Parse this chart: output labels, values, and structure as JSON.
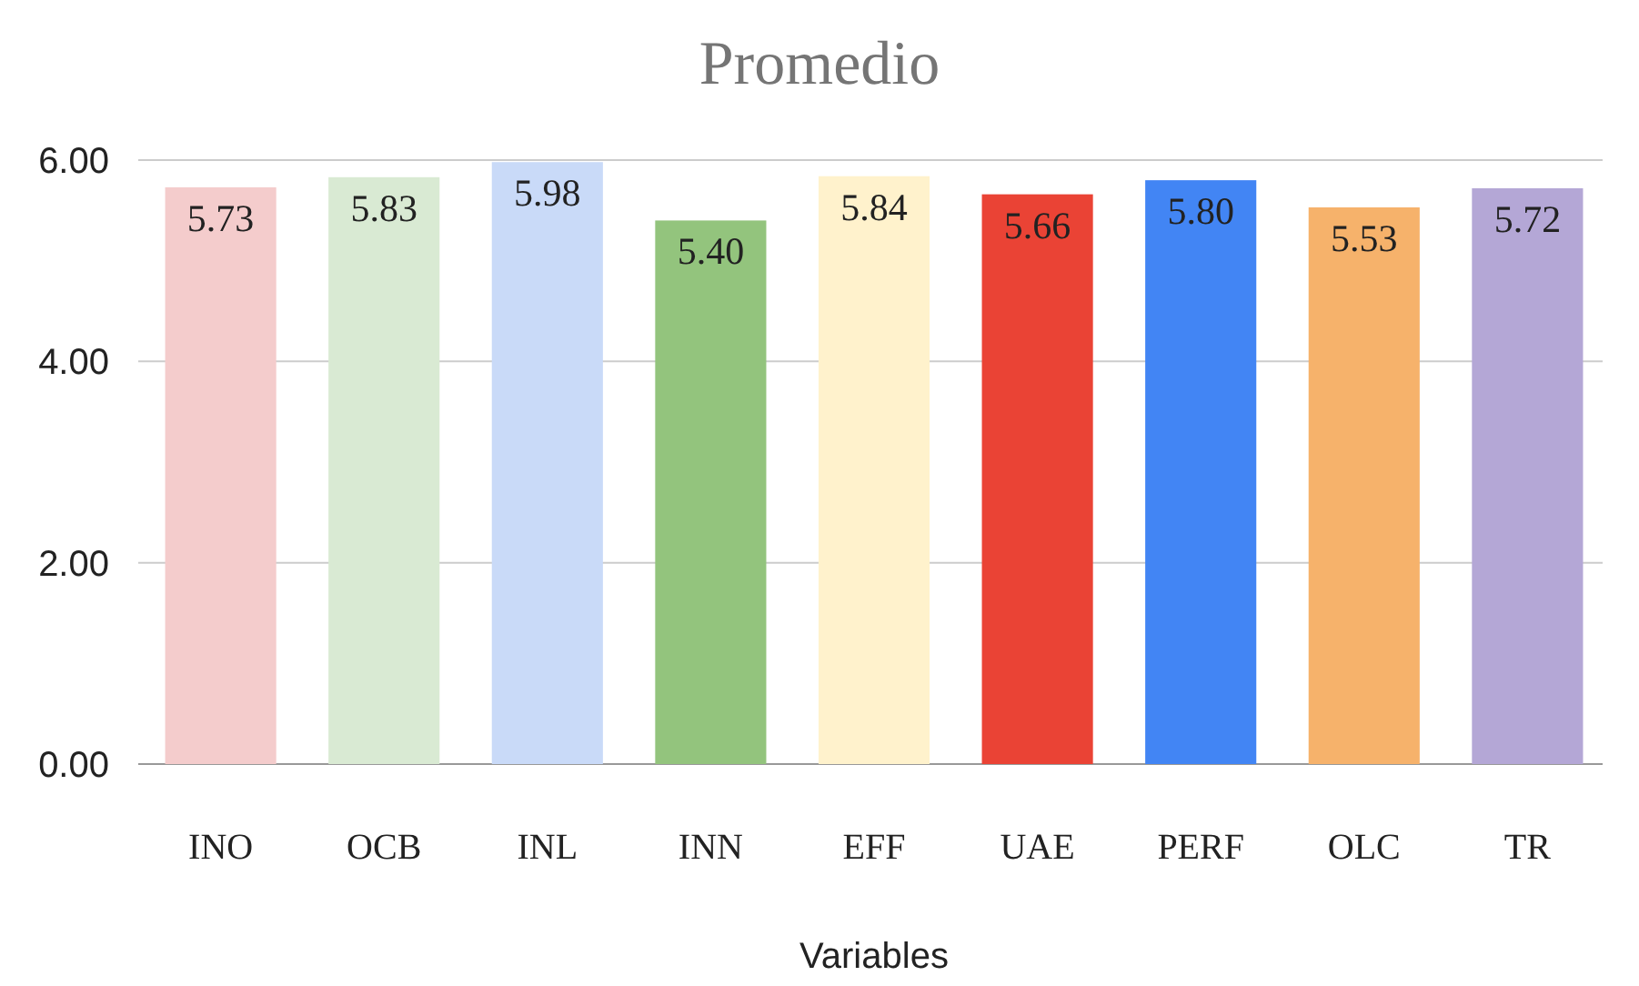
{
  "chart_data": {
    "type": "bar",
    "title": "Promedio",
    "xlabel": "Variables",
    "categories": [
      "INO",
      "OCB",
      "INL",
      "INN",
      "EFF",
      "UAE",
      "PERF",
      "OLC",
      "TR"
    ],
    "values": [
      5.73,
      5.83,
      5.98,
      5.4,
      5.84,
      5.66,
      5.8,
      5.53,
      5.72
    ],
    "colors": [
      "#f4cccc",
      "#d9ead3",
      "#c9daf8",
      "#93c47d",
      "#fff2cc",
      "#ea4335",
      "#4285f4",
      "#f6b26b",
      "#b4a7d6"
    ],
    "value_labels": [
      "5.73",
      "5.83",
      "5.98",
      "5.40",
      "5.84",
      "5.66",
      "5.80",
      "5.53",
      "5.72"
    ],
    "ylim": [
      0,
      6
    ],
    "yticks": [
      {
        "value": 0,
        "label": "0.00"
      },
      {
        "value": 2,
        "label": "2.00"
      },
      {
        "value": 4,
        "label": "4.00"
      },
      {
        "value": 6,
        "label": "6.00"
      }
    ],
    "grid": "y"
  }
}
